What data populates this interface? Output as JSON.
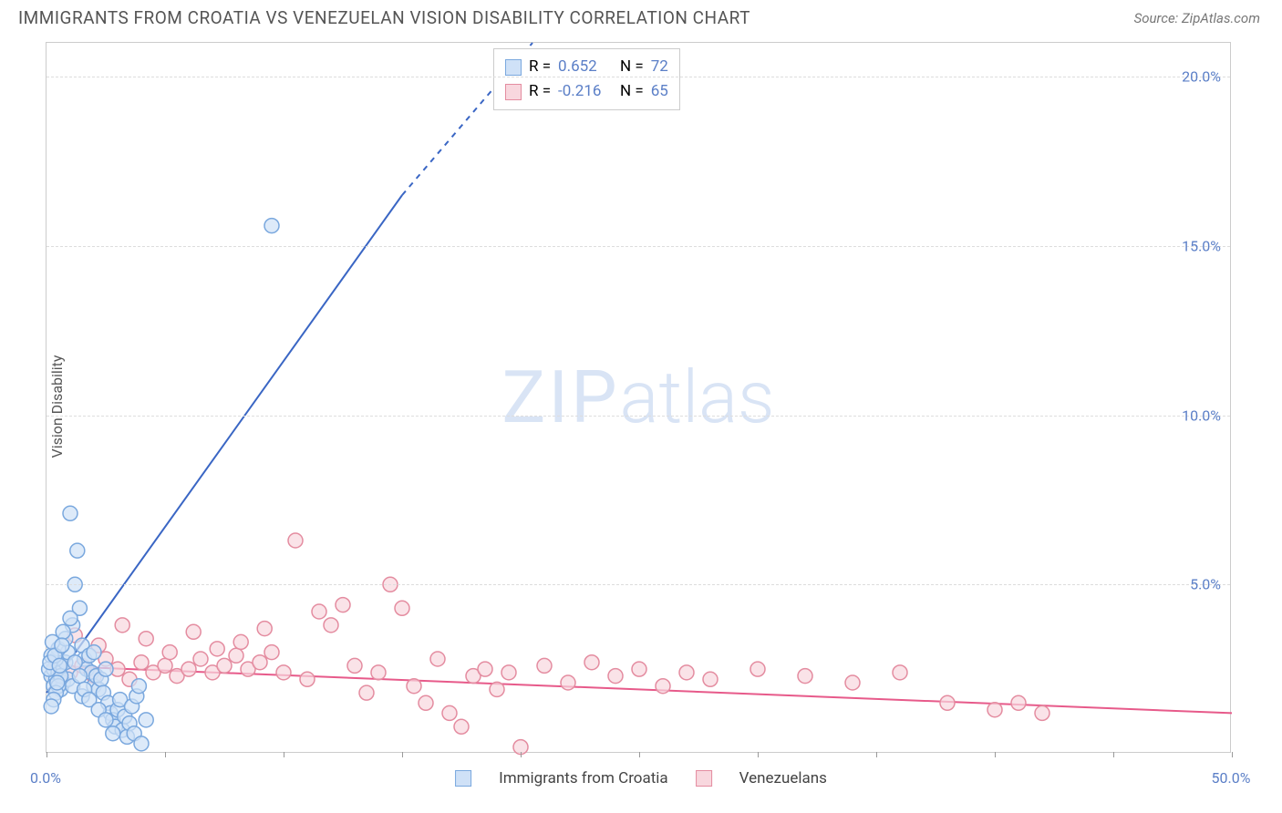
{
  "header": {
    "title": "IMMIGRANTS FROM CROATIA VS VENEZUELAN VISION DISABILITY CORRELATION CHART",
    "source": "Source: ZipAtlas.com"
  },
  "watermark": {
    "text1": "ZIP",
    "text2": "atlas",
    "color": "#d9e4f5"
  },
  "chart": {
    "type": "scatter",
    "ylabel": "Vision Disability",
    "background_color": "#ffffff",
    "border_color": "#cccccc",
    "grid_color": "#dddddd",
    "xlim": [
      0,
      50
    ],
    "ylim": [
      0,
      21
    ],
    "xticks": [
      0,
      5,
      10,
      15,
      20,
      25,
      30,
      35,
      40,
      45,
      50
    ],
    "yticks": [
      {
        "v": 5,
        "label": "5.0%"
      },
      {
        "v": 10,
        "label": "10.0%"
      },
      {
        "v": 15,
        "label": "15.0%"
      },
      {
        "v": 20,
        "label": "20.0%"
      }
    ],
    "xtick_labels": {
      "min": "0.0%",
      "max": "50.0%"
    },
    "tick_color": "#5b7fc7",
    "label_fontsize": 16,
    "marker_radius": 8,
    "marker_stroke_width": 1.5,
    "series": [
      {
        "name": "Immigrants from Croatia",
        "fill": "#cfe1f7",
        "stroke": "#7aa8de",
        "line_color": "#3a66c4",
        "line_width": 2,
        "R": "0.652",
        "N": "72",
        "trend": {
          "x1": 0,
          "y1": 1.8,
          "x2": 15,
          "y2": 16.5,
          "dash_from_x": 15,
          "dash_to_x": 20.5,
          "dash_to_y": 21
        },
        "points": [
          [
            0.2,
            2.3
          ],
          [
            0.3,
            2.5
          ],
          [
            0.4,
            2.2
          ],
          [
            0.5,
            2.4
          ],
          [
            0.6,
            2.6
          ],
          [
            0.7,
            2.1
          ],
          [
            0.8,
            2.7
          ],
          [
            0.9,
            3.0
          ],
          [
            1.0,
            7.1
          ],
          [
            1.1,
            3.8
          ],
          [
            1.2,
            5.0
          ],
          [
            1.3,
            6.0
          ],
          [
            1.4,
            4.3
          ],
          [
            1.5,
            3.2
          ],
          [
            1.6,
            2.8
          ],
          [
            1.7,
            2.5
          ],
          [
            1.8,
            2.9
          ],
          [
            1.9,
            2.4
          ],
          [
            2.0,
            2.0
          ],
          [
            2.1,
            2.3
          ],
          [
            2.2,
            1.9
          ],
          [
            2.3,
            2.2
          ],
          [
            2.4,
            1.8
          ],
          [
            2.5,
            2.5
          ],
          [
            2.6,
            1.5
          ],
          [
            2.7,
            1.2
          ],
          [
            2.8,
            1.0
          ],
          [
            2.9,
            0.8
          ],
          [
            3.0,
            1.3
          ],
          [
            3.1,
            1.6
          ],
          [
            3.2,
            0.7
          ],
          [
            3.3,
            1.1
          ],
          [
            3.4,
            0.5
          ],
          [
            3.5,
            0.9
          ],
          [
            3.6,
            1.4
          ],
          [
            3.7,
            0.6
          ],
          [
            3.8,
            1.7
          ],
          [
            3.9,
            2.0
          ],
          [
            4.0,
            0.3
          ],
          [
            4.2,
            1.0
          ],
          [
            0.3,
            2.0
          ],
          [
            0.4,
            2.8
          ],
          [
            0.5,
            3.1
          ],
          [
            0.6,
            1.9
          ],
          [
            0.8,
            3.4
          ],
          [
            1.0,
            4.0
          ],
          [
            0.2,
            2.9
          ],
          [
            0.9,
            2.2
          ],
          [
            1.1,
            2.0
          ],
          [
            1.5,
            1.7
          ],
          [
            2.0,
            3.0
          ],
          [
            0.7,
            3.6
          ],
          [
            0.6,
            2.3
          ],
          [
            0.5,
            2.0
          ],
          [
            0.4,
            1.8
          ],
          [
            0.3,
            1.6
          ],
          [
            0.2,
            1.4
          ],
          [
            0.1,
            2.5
          ],
          [
            0.15,
            2.7
          ],
          [
            0.25,
            3.3
          ],
          [
            0.35,
            2.9
          ],
          [
            0.45,
            2.1
          ],
          [
            0.55,
            2.6
          ],
          [
            0.65,
            3.2
          ],
          [
            9.5,
            15.6
          ],
          [
            1.2,
            2.7
          ],
          [
            1.4,
            2.3
          ],
          [
            1.6,
            1.9
          ],
          [
            1.8,
            1.6
          ],
          [
            2.2,
            1.3
          ],
          [
            2.5,
            1.0
          ],
          [
            2.8,
            0.6
          ]
        ]
      },
      {
        "name": "Venezuelans",
        "fill": "#f8d7de",
        "stroke": "#e48ca0",
        "line_color": "#e75a8a",
        "line_width": 2,
        "R": "-0.216",
        "N": "65",
        "trend": {
          "x1": 0,
          "y1": 2.6,
          "x2": 50,
          "y2": 1.2
        },
        "points": [
          [
            0.5,
            2.5
          ],
          [
            1.0,
            2.4
          ],
          [
            1.5,
            2.6
          ],
          [
            2.0,
            2.3
          ],
          [
            2.5,
            2.8
          ],
          [
            3.0,
            2.5
          ],
          [
            3.5,
            2.2
          ],
          [
            4.0,
            2.7
          ],
          [
            4.5,
            2.4
          ],
          [
            5.0,
            2.6
          ],
          [
            5.5,
            2.3
          ],
          [
            6.0,
            2.5
          ],
          [
            6.5,
            2.8
          ],
          [
            7.0,
            2.4
          ],
          [
            7.5,
            2.6
          ],
          [
            8.0,
            2.9
          ],
          [
            8.5,
            2.5
          ],
          [
            9.0,
            2.7
          ],
          [
            9.5,
            3.0
          ],
          [
            10.0,
            2.4
          ],
          [
            10.5,
            6.3
          ],
          [
            11.0,
            2.2
          ],
          [
            11.5,
            4.2
          ],
          [
            12.0,
            3.8
          ],
          [
            12.5,
            4.4
          ],
          [
            13.0,
            2.6
          ],
          [
            13.5,
            1.8
          ],
          [
            14.0,
            2.4
          ],
          [
            14.5,
            5.0
          ],
          [
            15.0,
            4.3
          ],
          [
            15.5,
            2.0
          ],
          [
            16.0,
            1.5
          ],
          [
            16.5,
            2.8
          ],
          [
            17.0,
            1.2
          ],
          [
            17.5,
            0.8
          ],
          [
            18.0,
            2.3
          ],
          [
            18.5,
            2.5
          ],
          [
            19.0,
            1.9
          ],
          [
            19.5,
            2.4
          ],
          [
            20.0,
            0.2
          ],
          [
            21.0,
            2.6
          ],
          [
            22.0,
            2.1
          ],
          [
            23.0,
            2.7
          ],
          [
            24.0,
            2.3
          ],
          [
            25.0,
            2.5
          ],
          [
            26.0,
            2.0
          ],
          [
            27.0,
            2.4
          ],
          [
            28.0,
            2.2
          ],
          [
            30.0,
            2.5
          ],
          [
            32.0,
            2.3
          ],
          [
            34.0,
            2.1
          ],
          [
            36.0,
            2.4
          ],
          [
            38.0,
            1.5
          ],
          [
            40.0,
            1.3
          ],
          [
            41.0,
            1.5
          ],
          [
            42.0,
            1.2
          ],
          [
            1.2,
            3.5
          ],
          [
            2.2,
            3.2
          ],
          [
            3.2,
            3.8
          ],
          [
            4.2,
            3.4
          ],
          [
            5.2,
            3.0
          ],
          [
            6.2,
            3.6
          ],
          [
            7.2,
            3.1
          ],
          [
            8.2,
            3.3
          ],
          [
            9.2,
            3.7
          ]
        ]
      }
    ]
  },
  "stat_legend": {
    "r_label": "R =",
    "n_label": "N ="
  },
  "bottom_legend": {
    "label1": "Immigrants from Croatia",
    "label2": "Venezuelans"
  }
}
